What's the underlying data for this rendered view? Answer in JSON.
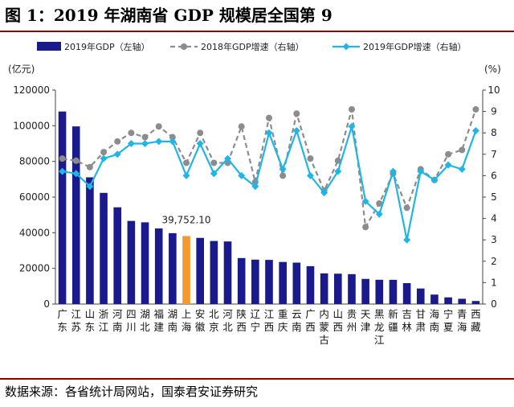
{
  "header": {
    "title": "图 1：2019 年湖南省 GDP 规模居全国第 9"
  },
  "footer": {
    "source": "数据来源：各省统计局网站，国泰君安证券研究"
  },
  "colors": {
    "bar": "#1a1a8c",
    "highlight": "#f39a2e",
    "line2018": "#8c8c8c",
    "line2019": "#1fb5e6",
    "rule": "#8b0000"
  },
  "chart_data": {
    "type": "bar",
    "left_axis_unit": "(亿元)",
    "right_axis_unit": "(%)",
    "ylim_left": [
      0,
      120000
    ],
    "yticks_left": [
      "0",
      "20000",
      "40000",
      "60000",
      "80000",
      "100000",
      "120000"
    ],
    "ylim_right": [
      0,
      10
    ],
    "yticks_right": [
      "0",
      "1",
      "2",
      "3",
      "4",
      "5",
      "6",
      "7",
      "8",
      "9",
      "10"
    ],
    "legend": [
      "2019年GDP（左轴）",
      "2018年GDP增速（右轴）",
      "2019年GDP增速（右轴）"
    ],
    "annotation": {
      "label": "39,752.10",
      "category_index": 9
    },
    "categories": [
      "广东",
      "江苏",
      "山东",
      "浙江",
      "河南",
      "四川",
      "湖北",
      "福建",
      "湖南",
      "上海",
      "安徽",
      "北京",
      "河北",
      "陕西",
      "辽宁",
      "江西",
      "重庆",
      "云南",
      "广西",
      "内蒙古",
      "山西",
      "贵州",
      "天津",
      "黑龙江",
      "新疆",
      "吉林",
      "甘肃",
      "海南",
      "宁夏",
      "青海",
      "西藏"
    ],
    "series": [
      {
        "name": "2019年GDP（左轴）",
        "type": "bar",
        "axis": "left",
        "values": [
          107986,
          99632,
          71068,
          62352,
          54259,
          46616,
          45828,
          42395,
          39752,
          38155,
          37114,
          35371,
          35105,
          25793,
          24909,
          24758,
          23606,
          23224,
          21237,
          17213,
          17027,
          16769,
          14104,
          13613,
          13597,
          11727,
          8718,
          5309,
          3748,
          2966,
          1698
        ]
      },
      {
        "name": "2018年GDP增速（右轴）",
        "type": "line",
        "axis": "right",
        "values": [
          6.8,
          6.7,
          6.4,
          7.1,
          7.6,
          8.0,
          7.8,
          8.3,
          7.8,
          6.6,
          8.0,
          6.6,
          6.6,
          8.3,
          5.7,
          8.7,
          6.0,
          8.9,
          6.8,
          5.3,
          6.7,
          9.1,
          3.6,
          4.7,
          6.1,
          4.5,
          6.3,
          5.8,
          7.0,
          7.2,
          9.1
        ]
      },
      {
        "name": "2019年GDP增速（右轴）",
        "type": "line",
        "axis": "right",
        "values": [
          6.2,
          6.1,
          5.5,
          6.8,
          7.0,
          7.5,
          7.5,
          7.6,
          7.6,
          6.0,
          7.5,
          6.1,
          6.8,
          6.0,
          5.5,
          8.0,
          6.3,
          8.1,
          6.0,
          5.2,
          6.2,
          8.3,
          4.8,
          4.2,
          6.2,
          3.0,
          6.2,
          5.8,
          6.5,
          6.3,
          8.1
        ]
      }
    ]
  }
}
